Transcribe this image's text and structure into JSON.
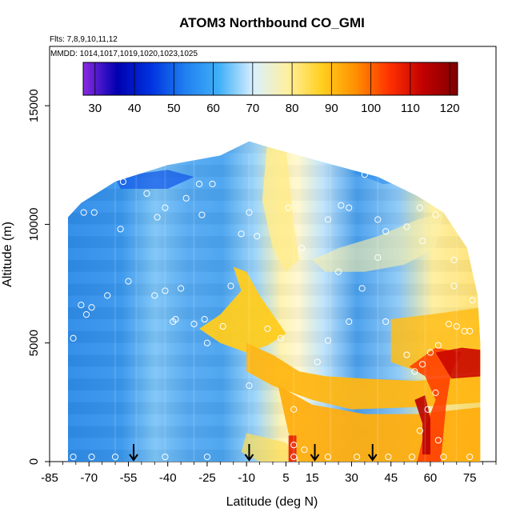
{
  "chart_data": {
    "type": "heatmap",
    "title": "ATOM3 Northbound CO_GMI",
    "subtitle_flights": "Flts: 7,8,9,10,11,12",
    "subtitle_dates": "MMDD: 1014,1017,1019,1020,1023,1025",
    "xlabel": "Latitude (deg N)",
    "ylabel": "Altitude (m)",
    "xlim": [
      -85,
      85
    ],
    "ylim": [
      0,
      17500
    ],
    "x_ticks": [
      -85,
      -70,
      -55,
      -40,
      -25,
      -10,
      5,
      15,
      30,
      45,
      60,
      75
    ],
    "y_ticks": [
      0,
      5000,
      10000,
      15000
    ],
    "colorbar": {
      "min": 27,
      "max": 122,
      "ticks": [
        30,
        40,
        50,
        60,
        70,
        80,
        90,
        100,
        110,
        120
      ],
      "colors": [
        "#8a2be2",
        "#0000b0",
        "#0033e0",
        "#2080f0",
        "#40b0f8",
        "#d8f0ff",
        "#fff0a0",
        "#ffd020",
        "#ff9000",
        "#ff3000",
        "#c00000",
        "#800000"
      ]
    },
    "arrow_latitudes": [
      -53,
      -9,
      16,
      38
    ],
    "curtain_top_profile": [
      {
        "lat": -78,
        "alt": 10300
      },
      {
        "lat": -73,
        "alt": 10900
      },
      {
        "lat": -60,
        "alt": 11800
      },
      {
        "lat": -40,
        "alt": 12500
      },
      {
        "lat": -20,
        "alt": 12900
      },
      {
        "lat": -9,
        "alt": 13500
      },
      {
        "lat": 0,
        "alt": 13200
      },
      {
        "lat": 20,
        "alt": 12600
      },
      {
        "lat": 40,
        "alt": 12000
      },
      {
        "lat": 55,
        "alt": 11200
      },
      {
        "lat": 65,
        "alt": 10500
      },
      {
        "lat": 74,
        "alt": 9000
      },
      {
        "lat": 78,
        "alt": 7000
      },
      {
        "lat": 79,
        "alt": 5000
      }
    ],
    "profile_points": [
      {
        "lat": -80,
        "alt": 7800
      },
      {
        "lat": -76,
        "alt": 5200
      },
      {
        "lat": -73,
        "alt": 6600
      },
      {
        "lat": -71,
        "alt": 6200
      },
      {
        "lat": -69,
        "alt": 6500
      },
      {
        "lat": -72,
        "alt": 10500
      },
      {
        "lat": -68,
        "alt": 10500
      },
      {
        "lat": -63,
        "alt": 7000
      },
      {
        "lat": -58,
        "alt": 9800
      },
      {
        "lat": -57,
        "alt": 11800
      },
      {
        "lat": -55,
        "alt": 7600
      },
      {
        "lat": -48,
        "alt": 11300
      },
      {
        "lat": -44,
        "alt": 10300
      },
      {
        "lat": -41,
        "alt": 10700
      },
      {
        "lat": -45,
        "alt": 7000
      },
      {
        "lat": -41,
        "alt": 7200
      },
      {
        "lat": -37,
        "alt": 6000
      },
      {
        "lat": -35,
        "alt": 7300
      },
      {
        "lat": -38,
        "alt": 5900
      },
      {
        "lat": -30,
        "alt": 5800
      },
      {
        "lat": -33,
        "alt": 11100
      },
      {
        "lat": -28,
        "alt": 11700
      },
      {
        "lat": -27,
        "alt": 10400
      },
      {
        "lat": -23,
        "alt": 11700
      },
      {
        "lat": -26,
        "alt": 6000
      },
      {
        "lat": -16,
        "alt": 7400
      },
      {
        "lat": -12,
        "alt": 9600
      },
      {
        "lat": -9,
        "alt": 10500
      },
      {
        "lat": -6,
        "alt": 9500
      },
      {
        "lat": 6,
        "alt": 10700
      },
      {
        "lat": 11,
        "alt": 9000
      },
      {
        "lat": 21,
        "alt": 10200
      },
      {
        "lat": 25,
        "alt": 8000
      },
      {
        "lat": 26,
        "alt": 10800
      },
      {
        "lat": 29,
        "alt": 10700
      },
      {
        "lat": 34,
        "alt": 7300
      },
      {
        "lat": 35,
        "alt": 12100
      },
      {
        "lat": 40,
        "alt": 10200
      },
      {
        "lat": 40,
        "alt": 8600
      },
      {
        "lat": 43,
        "alt": 9700
      },
      {
        "lat": 49,
        "alt": 12200
      },
      {
        "lat": 51,
        "alt": 9900
      },
      {
        "lat": 56,
        "alt": 10700
      },
      {
        "lat": 57,
        "alt": 9300
      },
      {
        "lat": 62,
        "alt": 10400
      },
      {
        "lat": 69,
        "alt": 8500
      },
      {
        "lat": 69,
        "alt": 7400
      },
      {
        "lat": 74,
        "alt": 9400
      },
      {
        "lat": 76,
        "alt": 6800
      },
      {
        "lat": -25,
        "alt": 5000
      },
      {
        "lat": -19,
        "alt": 5700
      },
      {
        "lat": -2,
        "alt": 5600
      },
      {
        "lat": 3,
        "alt": 5200
      },
      {
        "lat": 17,
        "alt": 4200
      },
      {
        "lat": 21,
        "alt": 5100
      },
      {
        "lat": 29,
        "alt": 5900
      },
      {
        "lat": 43,
        "alt": 5900
      },
      {
        "lat": 51,
        "alt": 4500
      },
      {
        "lat": 54,
        "alt": 3800
      },
      {
        "lat": 57,
        "alt": 4100
      },
      {
        "lat": 60,
        "alt": 4600
      },
      {
        "lat": 63,
        "alt": 4900
      },
      {
        "lat": 67,
        "alt": 5800
      },
      {
        "lat": 70,
        "alt": 5700
      },
      {
        "lat": 73,
        "alt": 5500
      },
      {
        "lat": 75,
        "alt": 5500
      },
      {
        "lat": 56,
        "alt": 1300
      },
      {
        "lat": 59,
        "alt": 2200
      },
      {
        "lat": 62,
        "alt": 2900
      },
      {
        "lat": 63,
        "alt": 900
      },
      {
        "lat": 8,
        "alt": 2200
      },
      {
        "lat": -9,
        "alt": 3200
      },
      {
        "lat": 8,
        "alt": 700
      },
      {
        "lat": 8,
        "alt": 200
      },
      {
        "lat": 12,
        "alt": 500
      },
      {
        "lat": -76,
        "alt": 200
      },
      {
        "lat": -69,
        "alt": 200
      },
      {
        "lat": -60,
        "alt": 200
      },
      {
        "lat": -41,
        "alt": 200
      },
      {
        "lat": -25,
        "alt": 200
      },
      {
        "lat": 21,
        "alt": 200
      },
      {
        "lat": 32,
        "alt": 200
      },
      {
        "lat": 44,
        "alt": 200
      },
      {
        "lat": 53,
        "alt": 200
      },
      {
        "lat": 65,
        "alt": 200
      },
      {
        "lat": 75,
        "alt": 200
      }
    ]
  }
}
